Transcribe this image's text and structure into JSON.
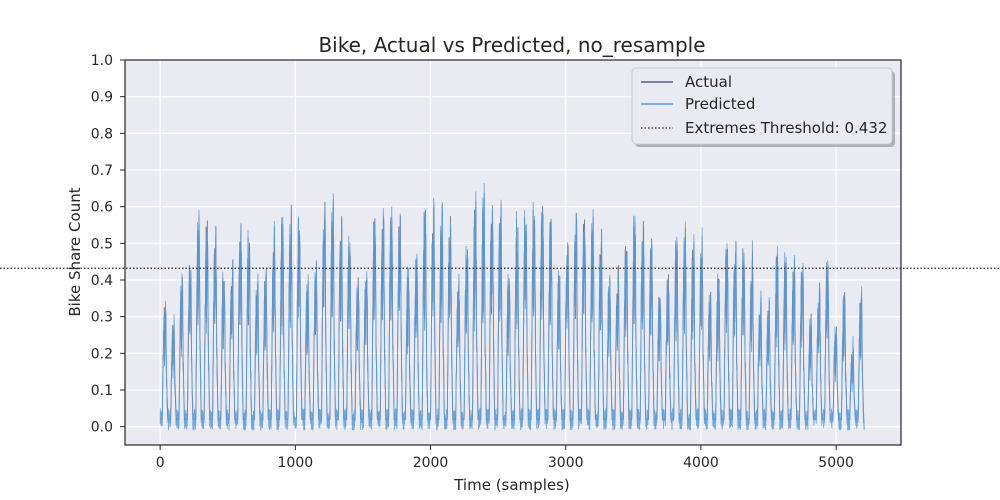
{
  "chart_data": {
    "type": "line",
    "title": "Bike, Actual vs Predicted, no_resample",
    "xlabel": "Time (samples)",
    "ylabel": "Bike Share Count",
    "xlim": [
      -260,
      5480
    ],
    "ylim": [
      -0.05,
      1.0
    ],
    "xticks": [
      0,
      1000,
      2000,
      3000,
      4000,
      5000
    ],
    "yticks": [
      0.0,
      0.1,
      0.2,
      0.3,
      0.4,
      0.5,
      0.6,
      0.7,
      0.8,
      0.9,
      1.0
    ],
    "grid": true,
    "legend_position": "top-right",
    "n_samples": 5210,
    "daily_peaks": [
      0.37,
      0.31,
      0.45,
      0.49,
      0.62,
      0.61,
      0.58,
      0.47,
      0.5,
      0.6,
      0.58,
      0.44,
      0.47,
      0.58,
      0.6,
      0.64,
      0.63,
      0.43,
      0.48,
      0.66,
      0.67,
      0.62,
      0.57,
      0.45,
      0.5,
      0.65,
      0.66,
      0.64,
      0.63,
      0.46,
      0.52,
      0.64,
      0.67,
      0.65,
      0.64,
      0.45,
      0.55,
      0.67,
      0.68,
      0.69,
      0.68,
      0.46,
      0.62,
      0.66,
      0.68,
      0.67,
      0.61,
      0.45,
      0.56,
      0.63,
      0.64,
      0.62,
      0.58,
      0.44,
      0.47,
      0.58,
      0.62,
      0.6,
      0.55,
      0.4,
      0.45,
      0.56,
      0.57,
      0.55,
      0.55,
      0.4,
      0.44,
      0.56,
      0.57,
      0.53,
      0.51,
      0.38,
      0.37,
      0.54,
      0.51,
      0.5,
      0.49,
      0.33,
      0.42,
      0.51,
      0.3,
      0.4,
      0.24,
      0.4
    ],
    "series": [
      {
        "name": "Actual",
        "color": "#5a6378"
      },
      {
        "name": "Predicted",
        "color": "#5b9bd5"
      },
      {
        "name": "Extremes Threshold: 0.432",
        "value": 0.432,
        "color": "#222222",
        "style": "dotted"
      }
    ]
  }
}
